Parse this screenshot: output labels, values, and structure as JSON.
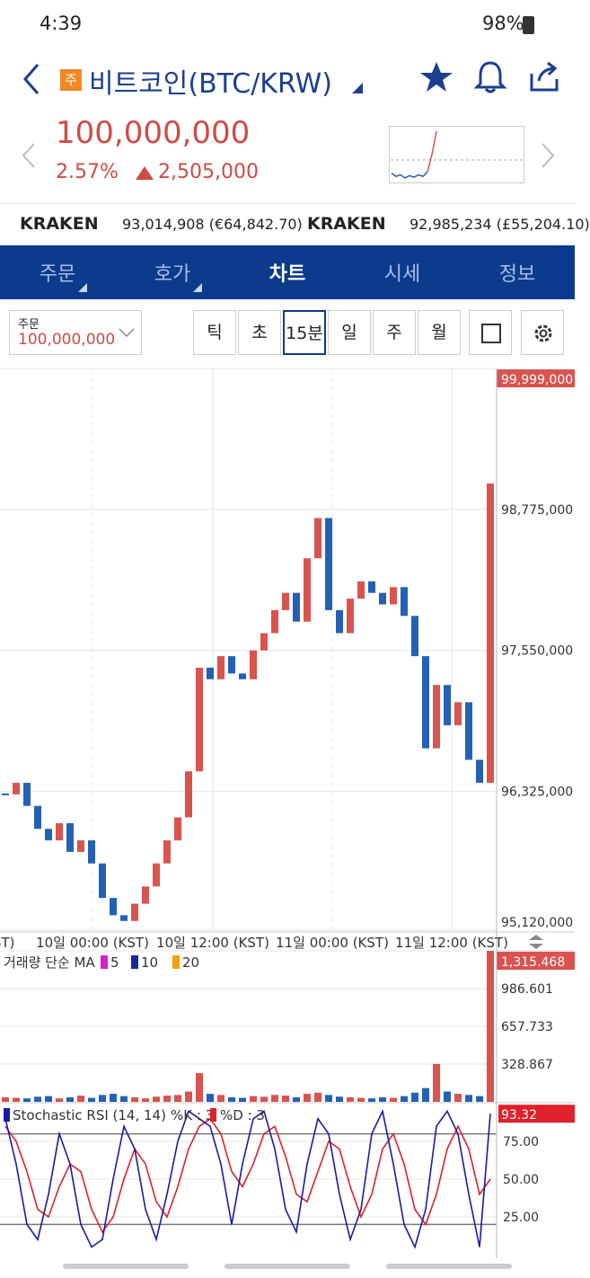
{
  "status_bar": {
    "time": "4:39",
    "battery": "98%"
  },
  "header": {
    "badge": "주",
    "title": "비트코인(BTC/KRW)"
  },
  "quote": {
    "price": "100,000,000",
    "change_percent": "2.57%",
    "change": "2,505,000",
    "mini_chart": [
      96300000,
      96100000,
      96200000,
      96000000,
      96150000,
      96050000,
      96200000,
      96100000,
      96400000,
      97500000,
      99000000
    ]
  },
  "exchanges": [
    {
      "name": "KRAKEN",
      "price": "93,014,908 (€64,842.70)"
    },
    {
      "name": "KRAKEN",
      "price": "92,985,234 (£55,204.10)"
    }
  ],
  "tabs": {
    "items": [
      "주문",
      "호가",
      "차트",
      "시세",
      "정보"
    ],
    "active": 2
  },
  "toolbar": {
    "order_label": "주문",
    "order_value": "100,000,000",
    "periods": [
      "틱",
      "초",
      "15분",
      "일",
      "주",
      "월"
    ],
    "selected_period": 2
  },
  "price_chart": {
    "type": "candlestick",
    "up_color": "#d9534f",
    "down_color": "#2461b5",
    "ylim": [
      95120000,
      99999000
    ],
    "yticks": [
      {
        "value": 95120000,
        "label": "95,120,000"
      },
      {
        "value": 96325000,
        "label": "96,325,000"
      },
      {
        "value": 97550000,
        "label": "97,550,000"
      },
      {
        "value": 98775000,
        "label": "98,775,000"
      },
      {
        "value": 99999000,
        "label": "99,999,000"
      }
    ],
    "x_labels": [
      "KST)",
      "10일 00:00 (KST)",
      "10일 12:00 (KST)",
      "11일 00:00 (KST)",
      "11일 12:00 (KST)"
    ],
    "values": [
      96300000,
      96400000,
      96200000,
      96000000,
      95900000,
      96050000,
      95800000,
      95900000,
      95700000,
      95400000,
      95250000,
      95200000,
      95350000,
      95500000,
      95700000,
      95900000,
      96100000,
      96500000,
      97400000,
      97300000,
      97500000,
      97350000,
      97300000,
      97550000,
      97700000,
      97900000,
      98050000,
      97800000,
      98350000,
      98700000,
      97900000,
      97700000,
      98000000,
      98150000,
      98050000,
      97950000,
      98100000,
      97850000,
      97500000,
      96700000,
      97250000,
      96900000,
      97100000,
      96600000,
      96400000,
      99000000
    ]
  },
  "volume_chart": {
    "type": "bar",
    "title": "거래량 단순 MA",
    "ma": [
      {
        "name": "5",
        "color": "#d61fc4"
      },
      {
        "name": "10",
        "color": "#1a2a9c"
      },
      {
        "name": "20",
        "color": "#f0a30a"
      }
    ],
    "ylim": [
      0,
      1315.468
    ],
    "yticks": [
      328.867,
      657.733,
      986.601,
      {
        "value": 1315.468,
        "label": "1,315.468"
      }
    ],
    "values": [
      40,
      35,
      30,
      45,
      50,
      30,
      40,
      55,
      35,
      60,
      70,
      50,
      40,
      30,
      45,
      55,
      60,
      90,
      250,
      70,
      60,
      40,
      35,
      50,
      45,
      60,
      55,
      40,
      70,
      80,
      60,
      45,
      40,
      35,
      30,
      40,
      35,
      50,
      80,
      120,
      330,
      90,
      70,
      60,
      50,
      1315.468
    ]
  },
  "stoch_chart": {
    "type": "line",
    "title": "Stochastic RSI (14, 14)",
    "ylim": [
      0,
      100
    ],
    "levels": [
      20,
      80
    ],
    "yticks": [
      {
        "value": 25,
        "label": "25.00"
      },
      {
        "value": 50,
        "label": "50.00"
      },
      {
        "value": 75,
        "label": "75.00"
      }
    ],
    "series": [
      {
        "name": "%K : 3",
        "color": "#1a1aa8",
        "values": [
          90,
          60,
          20,
          10,
          40,
          80,
          60,
          20,
          5,
          10,
          50,
          85,
          70,
          30,
          10,
          40,
          75,
          95,
          90,
          85,
          60,
          20,
          60,
          90,
          95,
          70,
          30,
          15,
          60,
          90,
          80,
          40,
          10,
          30,
          80,
          95,
          60,
          20,
          5,
          30,
          85,
          95,
          80,
          40,
          5,
          93.32
        ]
      },
      {
        "name": "%D : 3",
        "color": "#e0202a",
        "values": [
          85,
          75,
          55,
          30,
          25,
          45,
          60,
          55,
          30,
          15,
          25,
          50,
          70,
          60,
          35,
          25,
          45,
          70,
          85,
          90,
          80,
          55,
          45,
          60,
          80,
          85,
          65,
          40,
          35,
          55,
          75,
          70,
          45,
          25,
          40,
          70,
          80,
          60,
          30,
          20,
          40,
          70,
          85,
          70,
          40,
          50
        ]
      }
    ]
  }
}
